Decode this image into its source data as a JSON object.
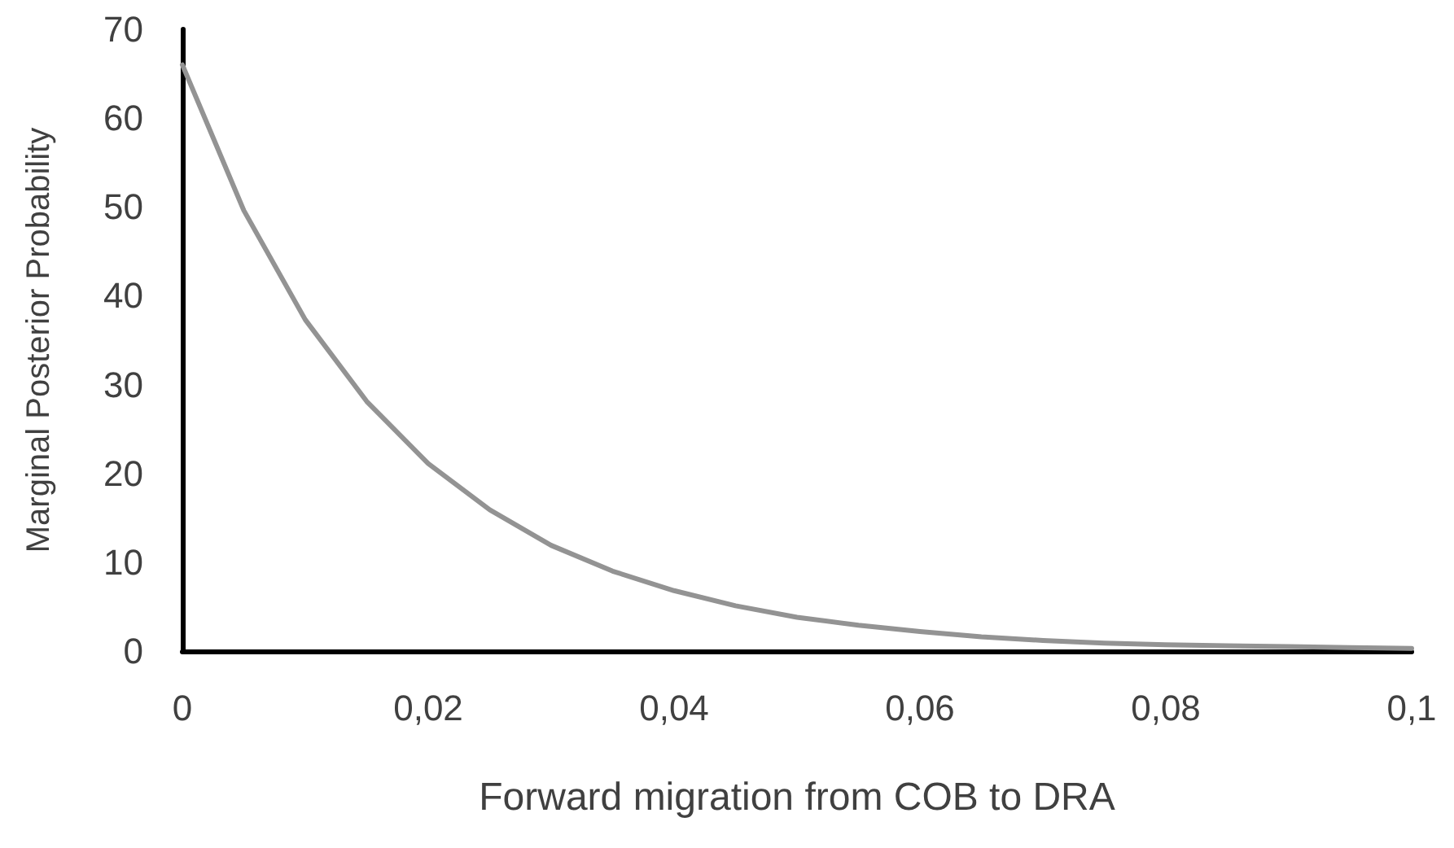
{
  "chart_data": {
    "type": "line",
    "xlabel": "Forward migration from COB to DRA",
    "ylabel": "Marginal Posterior Probability",
    "x": [
      0,
      0.005,
      0.01,
      0.015,
      0.02,
      0.025,
      0.03,
      0.035,
      0.04,
      0.045,
      0.05,
      0.055,
      0.06,
      0.065,
      0.07,
      0.075,
      0.08,
      0.085,
      0.09,
      0.095,
      0.1
    ],
    "series": [
      {
        "color": "#939393",
        "values": [
          66,
          49.6,
          37.3,
          28.1,
          21.1,
          15.9,
          11.9,
          9.0,
          6.8,
          5.1,
          3.8,
          2.9,
          2.2,
          1.6,
          1.2,
          0.9,
          0.7,
          0.6,
          0.5,
          0.4,
          0.3
        ]
      }
    ],
    "xlim": [
      0,
      0.1
    ],
    "xticks": [
      {
        "value": 0,
        "label": "0"
      },
      {
        "value": 0.02,
        "label": "0,02"
      },
      {
        "value": 0.04,
        "label": "0,04"
      },
      {
        "value": 0.06,
        "label": "0,06"
      },
      {
        "value": 0.08,
        "label": "0,08"
      },
      {
        "value": 0.1,
        "label": "0,1"
      }
    ],
    "ylim": [
      0,
      70
    ],
    "yticks": [
      0,
      10,
      20,
      30,
      40,
      50,
      60,
      70
    ],
    "grid": false,
    "marker": "none",
    "line_style": "solid"
  }
}
